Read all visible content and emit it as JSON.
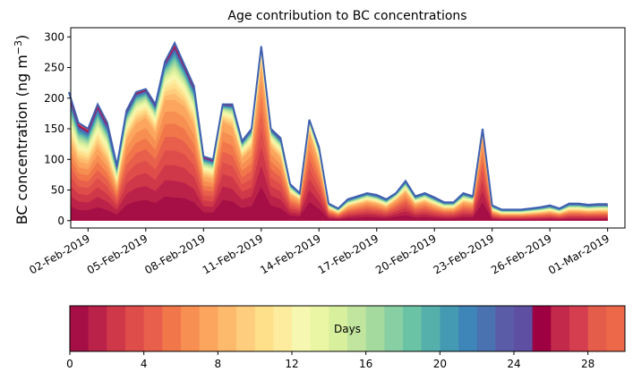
{
  "chart_data": [
    {
      "type": "area",
      "title": "Age contribution to BC concentrations",
      "ylabel_main": "BC concentration (ng m",
      "ylabel_exp": "−3",
      "ylabel_close": ")",
      "xlabel": "",
      "ylim": [
        -12,
        315
      ],
      "yticks": [
        0,
        50,
        100,
        150,
        200,
        250,
        300
      ],
      "ytick_labels": [
        "0",
        "50",
        "100",
        "150",
        "200",
        "250",
        "300"
      ],
      "xlim_days": [
        -0.9,
        27.9
      ],
      "xticks_days": [
        0,
        3,
        6,
        9,
        12,
        15,
        18,
        21,
        24,
        27
      ],
      "xtick_labels": [
        "02-Feb-2019",
        "05-Feb-2019",
        "08-Feb-2019",
        "11-Feb-2019",
        "14-Feb-2019",
        "17-Feb-2019",
        "20-Feb-2019",
        "23-Feb-2019",
        "26-Feb-2019",
        "01-Mar-2019"
      ],
      "x_days": [
        -1.0,
        -0.5,
        0.0,
        0.5,
        1.0,
        1.5,
        2.0,
        2.5,
        3.0,
        3.5,
        4.0,
        4.5,
        5.0,
        5.5,
        6.0,
        6.5,
        7.0,
        7.5,
        8.0,
        8.5,
        9.0,
        9.5,
        10.0,
        10.5,
        11.0,
        11.5,
        12.0,
        12.5,
        13.0,
        13.5,
        14.0,
        14.5,
        15.0,
        15.5,
        16.0,
        16.5,
        17.0,
        17.5,
        18.0,
        18.5,
        19.0,
        19.5,
        20.0,
        20.5,
        21.0,
        21.5,
        22.0,
        22.5,
        23.0,
        23.5,
        24.0,
        24.5,
        25.0,
        25.5,
        26.0,
        26.5,
        27.0
      ],
      "total_bc": [
        210,
        160,
        150,
        190,
        160,
        90,
        180,
        210,
        215,
        190,
        260,
        290,
        255,
        220,
        105,
        100,
        190,
        190,
        130,
        150,
        285,
        150,
        135,
        60,
        45,
        165,
        120,
        28,
        20,
        35,
        40,
        45,
        42,
        35,
        45,
        65,
        40,
        45,
        38,
        30,
        30,
        45,
        40,
        150,
        25,
        18,
        18,
        18,
        20,
        22,
        25,
        20,
        28,
        28,
        26,
        27,
        27
      ],
      "fresh_fraction": [
        0.25,
        0.2,
        0.22,
        0.25,
        0.2,
        0.2,
        0.45,
        0.5,
        0.55,
        0.5,
        0.5,
        0.35,
        0.45,
        0.4,
        0.35,
        0.35,
        0.7,
        0.6,
        0.55,
        0.55,
        0.8,
        0.6,
        0.5,
        0.4,
        0.45,
        0.75,
        0.55,
        0.3,
        0.15,
        0.25,
        0.3,
        0.35,
        0.3,
        0.25,
        0.45,
        0.4,
        0.3,
        0.35,
        0.25,
        0.25,
        0.25,
        0.3,
        0.35,
        0.85,
        0.15,
        0.1,
        0.1,
        0.1,
        0.1,
        0.1,
        0.1,
        0.1,
        0.1,
        0.1,
        0.1,
        0.1,
        0.1
      ],
      "top_line_color": "#4060b0",
      "colorbar": {
        "label": "Days",
        "range": [
          0,
          30
        ],
        "ticks": [
          0,
          4,
          8,
          12,
          16,
          20,
          24,
          28
        ],
        "tick_labels": [
          "0",
          "4",
          "8",
          "12",
          "16",
          "20",
          "24",
          "28"
        ],
        "colors": [
          "#a50f45",
          "#bb2249",
          "#cf3848",
          "#de4d4a",
          "#e85f4b",
          "#f1774a",
          "#f78e52",
          "#fba55e",
          "#fdba6c",
          "#fecd7d",
          "#fee08b",
          "#fdec9e",
          "#f6f7b0",
          "#ebf6a4",
          "#d8ef9e",
          "#c1e59e",
          "#a5da9f",
          "#89cfa4",
          "#6bc3a6",
          "#55b0ab",
          "#459ab3",
          "#3f86b8",
          "#4a72b1",
          "#5b5ca8",
          "#5e4fa2",
          "#9e0142",
          "#c2294a",
          "#d53e4f",
          "#e45c4a",
          "#ec6849"
        ]
      }
    }
  ]
}
